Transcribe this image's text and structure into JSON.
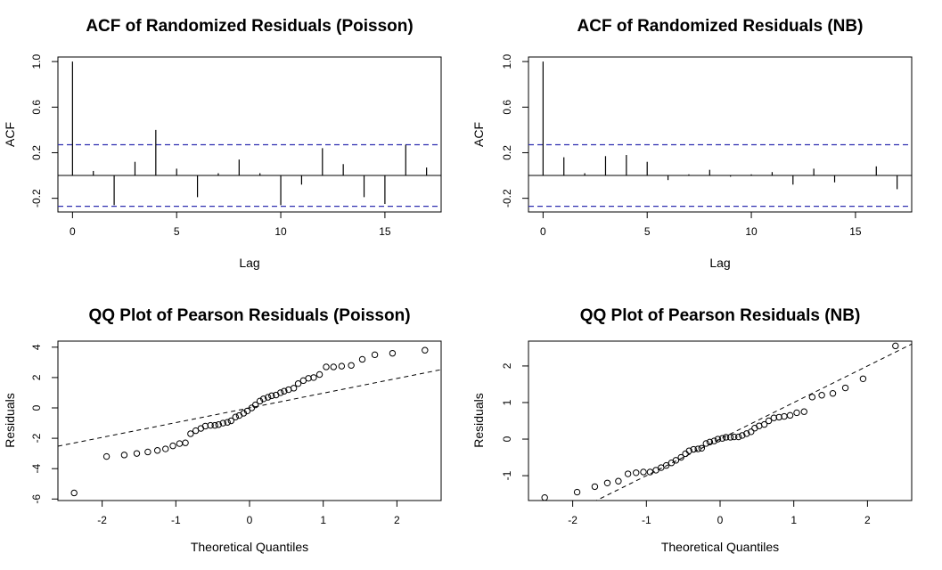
{
  "colors": {
    "conf_line": "#2f2fb0",
    "frame": "#000000",
    "bar": "#000000"
  },
  "chart_data": [
    {
      "type": "bar",
      "id": "acf-poisson",
      "title": "ACF of Randomized Residuals (Poisson)",
      "xlabel": "Lag",
      "ylabel": "ACF",
      "xlim": [
        -0.7,
        17.7
      ],
      "ylim": [
        -0.32,
        1.04
      ],
      "xticks": [
        0,
        5,
        10,
        15
      ],
      "yticks": [
        -0.2,
        0.2,
        0.6,
        1.0
      ],
      "ytick_labels": [
        "-0.2",
        "0.2",
        "0.6",
        "1.0"
      ],
      "conf_bound": 0.27,
      "lags": [
        0,
        1,
        2,
        3,
        4,
        5,
        6,
        7,
        8,
        9,
        10,
        11,
        12,
        13,
        14,
        15,
        16,
        17
      ],
      "values": [
        1.0,
        0.04,
        -0.26,
        0.12,
        0.4,
        0.06,
        -0.19,
        0.02,
        0.14,
        0.02,
        -0.26,
        -0.08,
        0.24,
        0.1,
        -0.19,
        -0.25,
        0.27,
        0.07
      ]
    },
    {
      "type": "bar",
      "id": "acf-nb",
      "title": "ACF of Randomized Residuals (NB)",
      "xlabel": "Lag",
      "ylabel": "ACF",
      "xlim": [
        -0.7,
        17.7
      ],
      "ylim": [
        -0.32,
        1.04
      ],
      "xticks": [
        0,
        5,
        10,
        15
      ],
      "yticks": [
        -0.2,
        0.2,
        0.6,
        1.0
      ],
      "ytick_labels": [
        "-0.2",
        "0.2",
        "0.6",
        "1.0"
      ],
      "conf_bound": 0.27,
      "lags": [
        0,
        1,
        2,
        3,
        4,
        5,
        6,
        7,
        8,
        9,
        10,
        11,
        12,
        13,
        14,
        15,
        16,
        17
      ],
      "values": [
        1.0,
        0.16,
        0.02,
        0.17,
        0.18,
        0.12,
        -0.04,
        0.01,
        0.05,
        -0.01,
        0.01,
        0.03,
        -0.08,
        0.06,
        -0.06,
        0.0,
        0.08,
        -0.12
      ]
    },
    {
      "type": "scatter",
      "id": "qq-poisson",
      "title": "QQ Plot of Pearson Residuals (Poisson)",
      "xlabel": "Theoretical Quantiles",
      "ylabel": "Residuals",
      "xlim": [
        -2.6,
        2.6
      ],
      "ylim": [
        -6.1,
        4.4
      ],
      "xticks": [
        -2,
        -1,
        0,
        1,
        2
      ],
      "yticks": [
        -6,
        -4,
        -2,
        0,
        2,
        4
      ],
      "ytick_labels": [
        "-6",
        "-4",
        "-2",
        "0",
        "2",
        "4"
      ],
      "ref_line": {
        "slope": 0.97,
        "intercept": 0.0
      },
      "points": [
        [
          -2.38,
          -5.6
        ],
        [
          -1.94,
          -3.2
        ],
        [
          -1.7,
          -3.1
        ],
        [
          -1.53,
          -3.0
        ],
        [
          -1.38,
          -2.9
        ],
        [
          -1.25,
          -2.8
        ],
        [
          -1.14,
          -2.7
        ],
        [
          -1.04,
          -2.5
        ],
        [
          -0.95,
          -2.35
        ],
        [
          -0.87,
          -2.3
        ],
        [
          -0.8,
          -1.7
        ],
        [
          -0.73,
          -1.5
        ],
        [
          -0.66,
          -1.35
        ],
        [
          -0.6,
          -1.2
        ],
        [
          -0.53,
          -1.15
        ],
        [
          -0.47,
          -1.15
        ],
        [
          -0.42,
          -1.1
        ],
        [
          -0.36,
          -1.0
        ],
        [
          -0.3,
          -0.95
        ],
        [
          -0.25,
          -0.85
        ],
        [
          -0.19,
          -0.6
        ],
        [
          -0.14,
          -0.5
        ],
        [
          -0.08,
          -0.35
        ],
        [
          -0.03,
          -0.2
        ],
        [
          0.03,
          0.0
        ],
        [
          0.08,
          0.2
        ],
        [
          0.14,
          0.45
        ],
        [
          0.19,
          0.6
        ],
        [
          0.25,
          0.7
        ],
        [
          0.3,
          0.8
        ],
        [
          0.36,
          0.85
        ],
        [
          0.42,
          1.0
        ],
        [
          0.47,
          1.1
        ],
        [
          0.53,
          1.2
        ],
        [
          0.6,
          1.3
        ],
        [
          0.66,
          1.6
        ],
        [
          0.73,
          1.8
        ],
        [
          0.8,
          1.95
        ],
        [
          0.87,
          2.0
        ],
        [
          0.95,
          2.2
        ],
        [
          1.04,
          2.7
        ],
        [
          1.14,
          2.7
        ],
        [
          1.25,
          2.75
        ],
        [
          1.38,
          2.8
        ],
        [
          1.53,
          3.2
        ],
        [
          1.7,
          3.5
        ],
        [
          1.94,
          3.6
        ],
        [
          2.38,
          3.8
        ]
      ]
    },
    {
      "type": "scatter",
      "id": "qq-nb",
      "title": "QQ Plot of Pearson Residuals (NB)",
      "xlabel": "Theoretical Quantiles",
      "ylabel": "Residuals",
      "xlim": [
        -2.6,
        2.6
      ],
      "ylim": [
        -1.68,
        2.68
      ],
      "xticks": [
        -2,
        -1,
        0,
        1,
        2
      ],
      "yticks": [
        -1,
        0,
        1,
        2
      ],
      "ytick_labels": [
        "-1",
        "0",
        "1",
        "2"
      ],
      "ref_line": {
        "slope": 1.0,
        "intercept": 0.0
      },
      "points": [
        [
          -2.38,
          -1.6
        ],
        [
          -1.94,
          -1.45
        ],
        [
          -1.7,
          -1.3
        ],
        [
          -1.53,
          -1.2
        ],
        [
          -1.38,
          -1.15
        ],
        [
          -1.25,
          -0.95
        ],
        [
          -1.14,
          -0.92
        ],
        [
          -1.04,
          -0.9
        ],
        [
          -0.95,
          -0.9
        ],
        [
          -0.87,
          -0.85
        ],
        [
          -0.8,
          -0.78
        ],
        [
          -0.73,
          -0.72
        ],
        [
          -0.66,
          -0.65
        ],
        [
          -0.6,
          -0.58
        ],
        [
          -0.53,
          -0.5
        ],
        [
          -0.47,
          -0.4
        ],
        [
          -0.42,
          -0.32
        ],
        [
          -0.36,
          -0.28
        ],
        [
          -0.3,
          -0.27
        ],
        [
          -0.25,
          -0.25
        ],
        [
          -0.19,
          -0.12
        ],
        [
          -0.14,
          -0.08
        ],
        [
          -0.08,
          -0.05
        ],
        [
          -0.03,
          0.0
        ],
        [
          0.03,
          0.02
        ],
        [
          0.08,
          0.05
        ],
        [
          0.14,
          0.05
        ],
        [
          0.19,
          0.06
        ],
        [
          0.25,
          0.06
        ],
        [
          0.3,
          0.1
        ],
        [
          0.36,
          0.15
        ],
        [
          0.42,
          0.2
        ],
        [
          0.47,
          0.3
        ],
        [
          0.53,
          0.36
        ],
        [
          0.6,
          0.4
        ],
        [
          0.66,
          0.5
        ],
        [
          0.73,
          0.58
        ],
        [
          0.8,
          0.6
        ],
        [
          0.87,
          0.62
        ],
        [
          0.95,
          0.65
        ],
        [
          1.04,
          0.72
        ],
        [
          1.14,
          0.75
        ],
        [
          1.25,
          1.15
        ],
        [
          1.38,
          1.2
        ],
        [
          1.53,
          1.25
        ],
        [
          1.7,
          1.4
        ],
        [
          1.94,
          1.65
        ],
        [
          2.38,
          2.55
        ]
      ]
    }
  ]
}
